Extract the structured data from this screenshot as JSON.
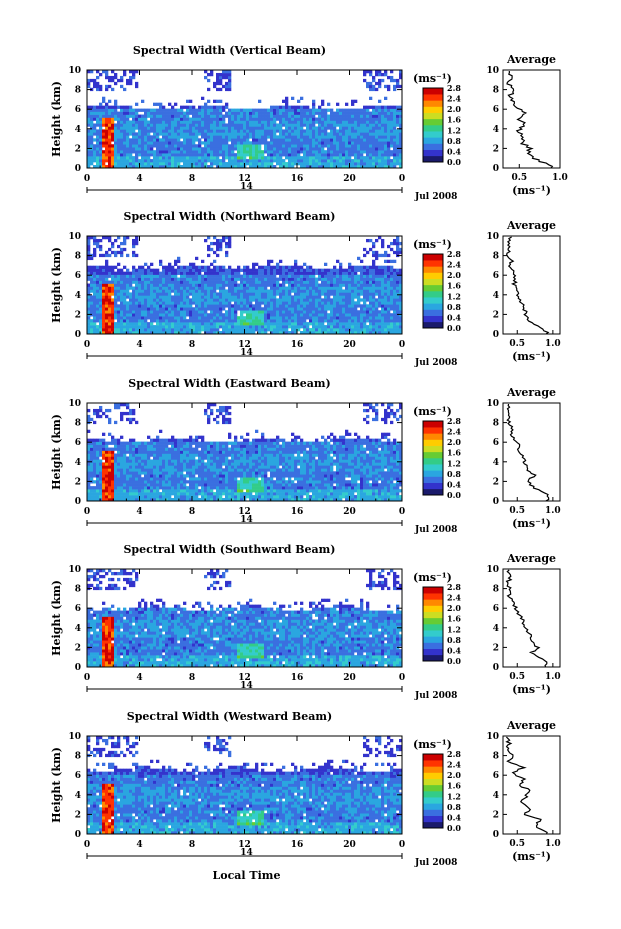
{
  "figure": {
    "xlabel": "Local Time",
    "day_label": "14",
    "month_label": "Jul 2008",
    "units_label": "(ms⁻¹)",
    "avg_title": "Average",
    "avg_xlabel": "(ms⁻¹)"
  },
  "colors": {
    "colormap": [
      "#1a1a6b",
      "#3333cc",
      "#3a6fe0",
      "#2aa6e0",
      "#33cccc",
      "#33cc88",
      "#66cc33",
      "#ccdd22",
      "#ffcc00",
      "#ff8800",
      "#ff3300",
      "#cc0000"
    ],
    "line": "#000000"
  },
  "chart_data": [
    {
      "type": "heatmap",
      "title": "Spectral Width (Vertical Beam)",
      "xlabel": "",
      "ylabel": "Height (km)",
      "x_ticks": [
        "0",
        "4",
        "8",
        "12",
        "16",
        "20",
        "0"
      ],
      "xlim": [
        0,
        24
      ],
      "y_ticks": [
        "0",
        "2",
        "4",
        "6",
        "8",
        "10"
      ],
      "ylim": [
        0,
        10
      ],
      "colorbar": {
        "label": "(ms⁻¹)",
        "range": [
          0,
          2.8
        ],
        "ticks": [
          "0.0",
          "0.4",
          "0.8",
          "1.2",
          "1.6",
          "2.0",
          "2.4",
          "2.8"
        ]
      },
      "top_km": 6.2,
      "average_profile": {
        "title": "Average",
        "xlabel": "(ms⁻¹)",
        "x_ticks": [
          "0.5",
          "1.0"
        ],
        "xlim": [
          0.3,
          1.0
        ],
        "y_ticks": [
          "0",
          "2",
          "4",
          "6",
          "8",
          "10"
        ],
        "ylim": [
          0,
          10
        ],
        "height_km": [
          0.2,
          0.8,
          1.4,
          2.0,
          2.6,
          3.2,
          3.8,
          4.4,
          5.0,
          5.6,
          6.2,
          6.8,
          7.4,
          8.0,
          8.6,
          9.2,
          9.8
        ],
        "width_ms": [
          0.9,
          0.72,
          0.6,
          0.64,
          0.52,
          0.56,
          0.48,
          0.58,
          0.5,
          0.58,
          0.48,
          0.42,
          0.38,
          0.44,
          0.36,
          0.4,
          0.38
        ]
      }
    },
    {
      "type": "heatmap",
      "title": "Spectral Width (Northward Beam)",
      "xlabel": "",
      "ylabel": "Height (km)",
      "x_ticks": [
        "0",
        "4",
        "8",
        "12",
        "16",
        "20",
        "0"
      ],
      "xlim": [
        0,
        24
      ],
      "y_ticks": [
        "0",
        "2",
        "4",
        "6",
        "8",
        "10"
      ],
      "ylim": [
        0,
        10
      ],
      "colorbar": {
        "label": "(ms⁻¹)",
        "range": [
          0,
          2.8
        ],
        "ticks": [
          "0.0",
          "0.4",
          "0.8",
          "1.2",
          "1.6",
          "2.0",
          "2.4",
          "2.8"
        ]
      },
      "top_km": 6.8,
      "average_profile": {
        "title": "Average",
        "xlabel": "(ms⁻¹)",
        "x_ticks": [
          "0.5",
          "1.0"
        ],
        "xlim": [
          0.3,
          1.1
        ],
        "y_ticks": [
          "0",
          "2",
          "4",
          "6",
          "8",
          "10"
        ],
        "ylim": [
          0,
          10
        ],
        "height_km": [
          0.2,
          0.8,
          1.4,
          2.0,
          2.6,
          3.2,
          3.8,
          4.4,
          5.0,
          5.6,
          6.2,
          6.8,
          7.4,
          8.0,
          8.6,
          9.2,
          9.8
        ],
        "width_ms": [
          0.92,
          0.8,
          0.66,
          0.62,
          0.6,
          0.56,
          0.52,
          0.5,
          0.46,
          0.48,
          0.44,
          0.4,
          0.42,
          0.36,
          0.4,
          0.38,
          0.4
        ]
      }
    },
    {
      "type": "heatmap",
      "title": "Spectral Width (Eastward Beam)",
      "xlabel": "",
      "ylabel": "Height (km)",
      "x_ticks": [
        "0",
        "4",
        "8",
        "12",
        "16",
        "20",
        "0"
      ],
      "xlim": [
        0,
        24
      ],
      "y_ticks": [
        "0",
        "2",
        "4",
        "6",
        "8",
        "10"
      ],
      "ylim": [
        0,
        10
      ],
      "colorbar": {
        "label": "(ms⁻¹)",
        "range": [
          0,
          2.8
        ],
        "ticks": [
          "0.0",
          "0.4",
          "0.8",
          "1.2",
          "1.6",
          "2.0",
          "2.4",
          "2.8"
        ]
      },
      "top_km": 6.2,
      "average_profile": {
        "title": "Average",
        "xlabel": "(ms⁻¹)",
        "x_ticks": [
          "0.5",
          "1.0"
        ],
        "xlim": [
          0.3,
          1.1
        ],
        "y_ticks": [
          "0",
          "2",
          "4",
          "6",
          "8",
          "10"
        ],
        "ylim": [
          0,
          10
        ],
        "height_km": [
          0.2,
          0.8,
          1.4,
          2.0,
          2.6,
          3.2,
          3.8,
          4.4,
          5.0,
          5.6,
          6.2,
          6.8,
          7.4,
          8.0,
          8.6,
          9.2,
          9.8
        ],
        "width_ms": [
          0.92,
          0.9,
          0.72,
          0.66,
          0.74,
          0.64,
          0.6,
          0.58,
          0.52,
          0.54,
          0.46,
          0.4,
          0.44,
          0.38,
          0.4,
          0.36,
          0.38
        ]
      }
    },
    {
      "type": "heatmap",
      "title": "Spectral Width (Southward Beam)",
      "xlabel": "",
      "ylabel": "Height (km)",
      "x_ticks": [
        "0",
        "4",
        "8",
        "12",
        "16",
        "20",
        "0"
      ],
      "xlim": [
        0,
        24
      ],
      "y_ticks": [
        "0",
        "2",
        "4",
        "6",
        "8",
        "10"
      ],
      "ylim": [
        0,
        10
      ],
      "colorbar": {
        "label": "(ms⁻¹)",
        "range": [
          0,
          2.8
        ],
        "ticks": [
          "0.0",
          "0.4",
          "0.8",
          "1.2",
          "1.6",
          "2.0",
          "2.4",
          "2.8"
        ]
      },
      "top_km": 6.0,
      "average_profile": {
        "title": "Average",
        "xlabel": "(ms⁻¹)",
        "x_ticks": [
          "0.5",
          "1.0"
        ],
        "xlim": [
          0.3,
          1.1
        ],
        "y_ticks": [
          "0",
          "2",
          "4",
          "6",
          "8",
          "10"
        ],
        "ylim": [
          0,
          10
        ],
        "height_km": [
          0.2,
          0.8,
          1.4,
          2.0,
          2.6,
          3.2,
          3.8,
          4.4,
          5.0,
          5.6,
          6.2,
          6.8,
          7.4,
          8.0,
          8.6,
          9.2,
          9.8
        ],
        "width_ms": [
          0.92,
          0.86,
          0.7,
          0.8,
          0.68,
          0.72,
          0.62,
          0.6,
          0.56,
          0.5,
          0.46,
          0.42,
          0.38,
          0.4,
          0.36,
          0.42,
          0.38
        ]
      }
    },
    {
      "type": "heatmap",
      "title": "Spectral Width (Westward Beam)",
      "xlabel": "Local Time",
      "ylabel": "Height (km)",
      "x_ticks": [
        "0",
        "4",
        "8",
        "12",
        "16",
        "20",
        "0"
      ],
      "xlim": [
        0,
        24
      ],
      "y_ticks": [
        "0",
        "2",
        "4",
        "6",
        "8",
        "10"
      ],
      "ylim": [
        0,
        10
      ],
      "colorbar": {
        "label": "(ms⁻¹)",
        "range": [
          0,
          2.8
        ],
        "ticks": [
          "0.0",
          "0.4",
          "0.8",
          "1.2",
          "1.6",
          "2.0",
          "2.4",
          "2.8"
        ]
      },
      "top_km": 6.6,
      "average_profile": {
        "title": "Average",
        "xlabel": "(ms⁻¹)",
        "x_ticks": [
          "0.5",
          "1.0"
        ],
        "xlim": [
          0.3,
          1.1
        ],
        "y_ticks": [
          "0",
          "2",
          "4",
          "6",
          "8",
          "10"
        ],
        "ylim": [
          0,
          10
        ],
        "height_km": [
          0.2,
          0.8,
          1.4,
          2.0,
          2.6,
          3.2,
          3.8,
          4.4,
          5.0,
          5.6,
          6.2,
          6.8,
          7.4,
          8.0,
          8.6,
          9.2,
          9.8
        ],
        "width_ms": [
          0.94,
          0.74,
          0.84,
          0.6,
          0.7,
          0.56,
          0.62,
          0.7,
          0.5,
          0.62,
          0.42,
          0.6,
          0.38,
          0.46,
          0.36,
          0.4,
          0.34
        ]
      }
    }
  ]
}
